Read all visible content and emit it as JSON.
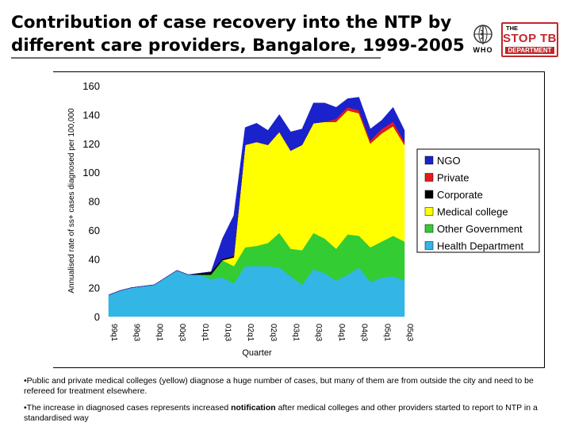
{
  "slide": {
    "title_line1": "Contribution of case recovery into the NTP by",
    "title_line2": "different care providers, Bangalore, 1999-2005",
    "logos": {
      "who_text": "WHO",
      "stoptb_line1": "THE",
      "stoptb_line2": "STOP TB",
      "stoptb_line3": "DEPARTMENT"
    },
    "notes": [
      {
        "text": "•Public and private medical colleges (yellow) diagnose a huge number of cases, but many of them are from outside the city and need to be refereed for treatment elsewhere."
      },
      {
        "pre": "•The increase in diagnosed cases represents increased ",
        "bold": "notification",
        "post": " after medical colleges and other providers started to report to NTP in a standardised way"
      }
    ]
  },
  "chart_data": {
    "type": "area",
    "stacked": true,
    "xlabel": "Quarter",
    "ylabel": "Annualised rate of ss+ cases diagnosed per 100,000",
    "ylim": [
      0,
      160
    ],
    "yticks": [
      0,
      20,
      40,
      60,
      80,
      100,
      120,
      140,
      160
    ],
    "grid": false,
    "legend_position": "right",
    "x": [
      "99q1",
      "99q2",
      "99q3",
      "99q4",
      "00q1",
      "00q2",
      "00q3",
      "00q4",
      "01q1",
      "01q2",
      "01q3",
      "01q4",
      "02q1",
      "02q2",
      "02q3",
      "02q4",
      "03q1",
      "03q2",
      "03q3",
      "03q4",
      "04q1",
      "04q2",
      "04q3",
      "04q4",
      "05q1",
      "05q2",
      "05q3"
    ],
    "xtick_labels": [
      "99q1",
      "99q3",
      "00q1",
      "00q3",
      "01q1",
      "01q3",
      "02q1",
      "02q3",
      "03q1",
      "03q3",
      "04q1",
      "04q3",
      "05q1",
      "05q3"
    ],
    "series": [
      {
        "name": "Health Department",
        "color": "#33b5e5",
        "values": [
          15,
          18,
          20,
          21,
          22,
          27,
          32,
          29,
          29,
          26,
          27,
          23,
          35,
          35,
          35,
          34,
          28,
          22,
          33,
          30,
          25,
          29,
          34,
          24,
          27,
          28,
          25
        ]
      },
      {
        "name": "Other Government",
        "color": "#33cc33",
        "values": [
          0,
          0,
          0,
          0,
          0,
          0,
          0,
          0,
          0,
          3,
          12,
          12,
          13,
          14,
          16,
          24,
          19,
          24,
          25,
          24,
          22,
          28,
          22,
          24,
          25,
          28,
          27
        ]
      },
      {
        "name": "Medical college",
        "color": "#ffff00",
        "values": [
          0,
          0,
          0,
          0,
          0,
          0,
          0,
          0,
          0,
          0,
          0,
          6,
          71,
          72,
          68,
          70,
          68,
          73,
          76,
          81,
          88,
          86,
          85,
          72,
          75,
          76,
          67
        ]
      },
      {
        "name": "Corporate",
        "color": "#000000",
        "values": [
          0,
          0,
          0,
          0,
          0,
          0,
          0,
          0,
          1,
          2,
          1,
          1,
          0,
          0,
          0,
          0,
          0,
          0,
          0,
          0,
          0,
          0,
          0,
          0,
          0,
          0,
          0
        ]
      },
      {
        "name": "Private",
        "color": "#e41a1c",
        "values": [
          0,
          0,
          0,
          0,
          0,
          0,
          0,
          0,
          0,
          0,
          0,
          0,
          0,
          0,
          0,
          0,
          0,
          0,
          0,
          0,
          2,
          2,
          2,
          2,
          3,
          3,
          2
        ]
      },
      {
        "name": "NGO",
        "color": "#1a22cc",
        "values": [
          0,
          0,
          0,
          0,
          0,
          0,
          0,
          0,
          0,
          0,
          14,
          28,
          12,
          13,
          10,
          12,
          13,
          11,
          14,
          13,
          8,
          6,
          9,
          8,
          6,
          10,
          8
        ]
      }
    ],
    "legend_order": [
      "NGO",
      "Private",
      "Corporate",
      "Medical college",
      "Other Government",
      "Health Department"
    ]
  }
}
